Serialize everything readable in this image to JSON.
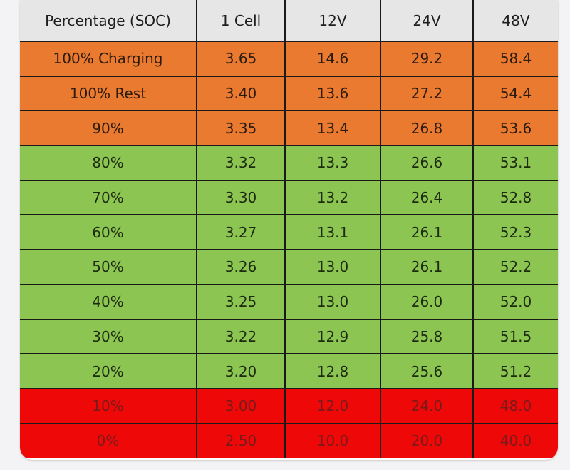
{
  "table": {
    "headers": [
      "Percentage (SOC)",
      "1 Cell",
      "12V",
      "24V",
      "48V"
    ],
    "rows": [
      {
        "band": "orange",
        "cells": [
          "100% Charging",
          "3.65",
          "14.6",
          "29.2",
          "58.4"
        ]
      },
      {
        "band": "orange",
        "cells": [
          "100% Rest",
          "3.40",
          "13.6",
          "27.2",
          "54.4"
        ]
      },
      {
        "band": "orange",
        "cells": [
          "90%",
          "3.35",
          "13.4",
          "26.8",
          "53.6"
        ]
      },
      {
        "band": "green",
        "cells": [
          "80%",
          "3.32",
          "13.3",
          "26.6",
          "53.1"
        ]
      },
      {
        "band": "green",
        "cells": [
          "70%",
          "3.30",
          "13.2",
          "26.4",
          "52.8"
        ]
      },
      {
        "band": "green",
        "cells": [
          "60%",
          "3.27",
          "13.1",
          "26.1",
          "52.3"
        ]
      },
      {
        "band": "green",
        "cells": [
          "50%",
          "3.26",
          "13.0",
          "26.1",
          "52.2"
        ]
      },
      {
        "band": "green",
        "cells": [
          "40%",
          "3.25",
          "13.0",
          "26.0",
          "52.0"
        ]
      },
      {
        "band": "green",
        "cells": [
          "30%",
          "3.22",
          "12.9",
          "25.8",
          "51.5"
        ]
      },
      {
        "band": "green",
        "cells": [
          "20%",
          "3.20",
          "12.8",
          "25.6",
          "51.2"
        ]
      },
      {
        "band": "red",
        "cells": [
          "10%",
          "3.00",
          "12.0",
          "24.0",
          "48.0"
        ]
      },
      {
        "band": "red",
        "cells": [
          "0%",
          "2.50",
          "10.0",
          "20.0",
          "40.0"
        ]
      }
    ]
  },
  "colors": {
    "header": "#e6e6e6",
    "orange": "#e97a30",
    "green": "#8dc552",
    "red": "#ee0808"
  }
}
